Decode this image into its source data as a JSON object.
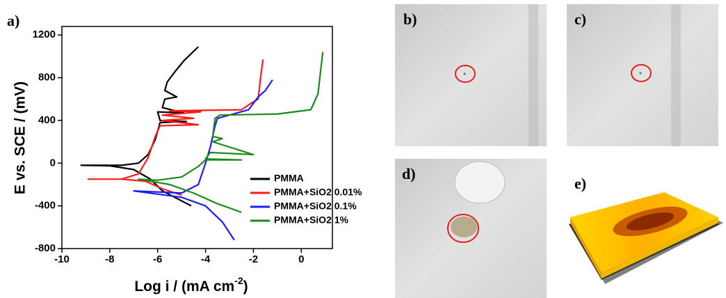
{
  "panel_label": "a)",
  "photo_panels": [
    "b)",
    "c)",
    "d)",
    "e)"
  ],
  "chart_data": {
    "type": "line",
    "ylabel": "E vs. SCE / (mV)",
    "xlabel": [
      "Log i / (mA cm",
      "-2",
      ")"
    ],
    "xlim": [
      -10,
      1.3
    ],
    "ylim": [
      -800,
      1280
    ],
    "xticks": [
      -10,
      -8,
      -6,
      -4,
      -2,
      0
    ],
    "yticks": [
      -800,
      -400,
      0,
      400,
      800,
      1200
    ],
    "legend": "lower right",
    "series": [
      {
        "name": "PMMA",
        "color": "#000000",
        "x": [
          -4.6,
          -5.2,
          -5.8,
          -6.3,
          -7,
          -8,
          -9.2,
          -7.5,
          -6.8,
          -6.4,
          -6.1,
          -5.9,
          -4.8,
          -5.9,
          -6.0,
          -4.9,
          -5.8,
          -5.7,
          -5.2,
          -5.7,
          -5.6,
          -5.3,
          -4.9,
          -4.3
        ],
        "values": [
          -400,
          -330,
          -260,
          -150,
          -60,
          -25,
          -20,
          -20,
          0,
          80,
          220,
          380,
          390,
          400,
          480,
          470,
          520,
          600,
          620,
          680,
          760,
          850,
          960,
          1090
        ]
      },
      {
        "name": "PMMA+SiO2 0.01%",
        "color": "#ff1a1a",
        "x": [
          -5.0,
          -5.8,
          -6.5,
          -7.5,
          -8.9,
          -7.5,
          -6.8,
          -6.4,
          -6.1,
          -5.9,
          -4.3,
          -5.8,
          -4.5,
          -5.8,
          -4.2,
          -5.5,
          -2.5,
          -2.1,
          -1.8,
          -1.7,
          -1.6
        ],
        "values": [
          -300,
          -240,
          -170,
          -150,
          -150,
          -150,
          -100,
          50,
          250,
          350,
          360,
          400,
          420,
          450,
          480,
          490,
          500,
          560,
          600,
          800,
          970
        ]
      },
      {
        "name": "PMMA+SiO2 0.1%",
        "color": "#1a1aff",
        "x": [
          -2.8,
          -3.3,
          -4,
          -5,
          -6,
          -7,
          -5,
          -4.3,
          -4,
          -3.8,
          -3.6,
          -3.5,
          -2.2,
          -1.8,
          -1.5,
          -1.2
        ],
        "values": [
          -720,
          -550,
          -400,
          -320,
          -290,
          -260,
          -280,
          -200,
          0,
          150,
          350,
          420,
          500,
          620,
          680,
          780
        ]
      },
      {
        "name": "PMMA+SiO2 1%",
        "color": "#1a8a1a",
        "x": [
          -2.5,
          -3.5,
          -4.5,
          -5.5,
          -6.8,
          -6,
          -5,
          -4.3,
          -4,
          -2.5,
          -4,
          -3.8,
          -2,
          -3.7,
          -3.3,
          -3.7,
          -3.6,
          -3.4,
          -1,
          0.4,
          0.7,
          0.8,
          0.9
        ],
        "values": [
          -460,
          -380,
          -280,
          -200,
          -150,
          -160,
          -130,
          -30,
          30,
          30,
          40,
          100,
          80,
          200,
          230,
          250,
          420,
          450,
          460,
          500,
          650,
          850,
          1040
        ]
      }
    ]
  }
}
